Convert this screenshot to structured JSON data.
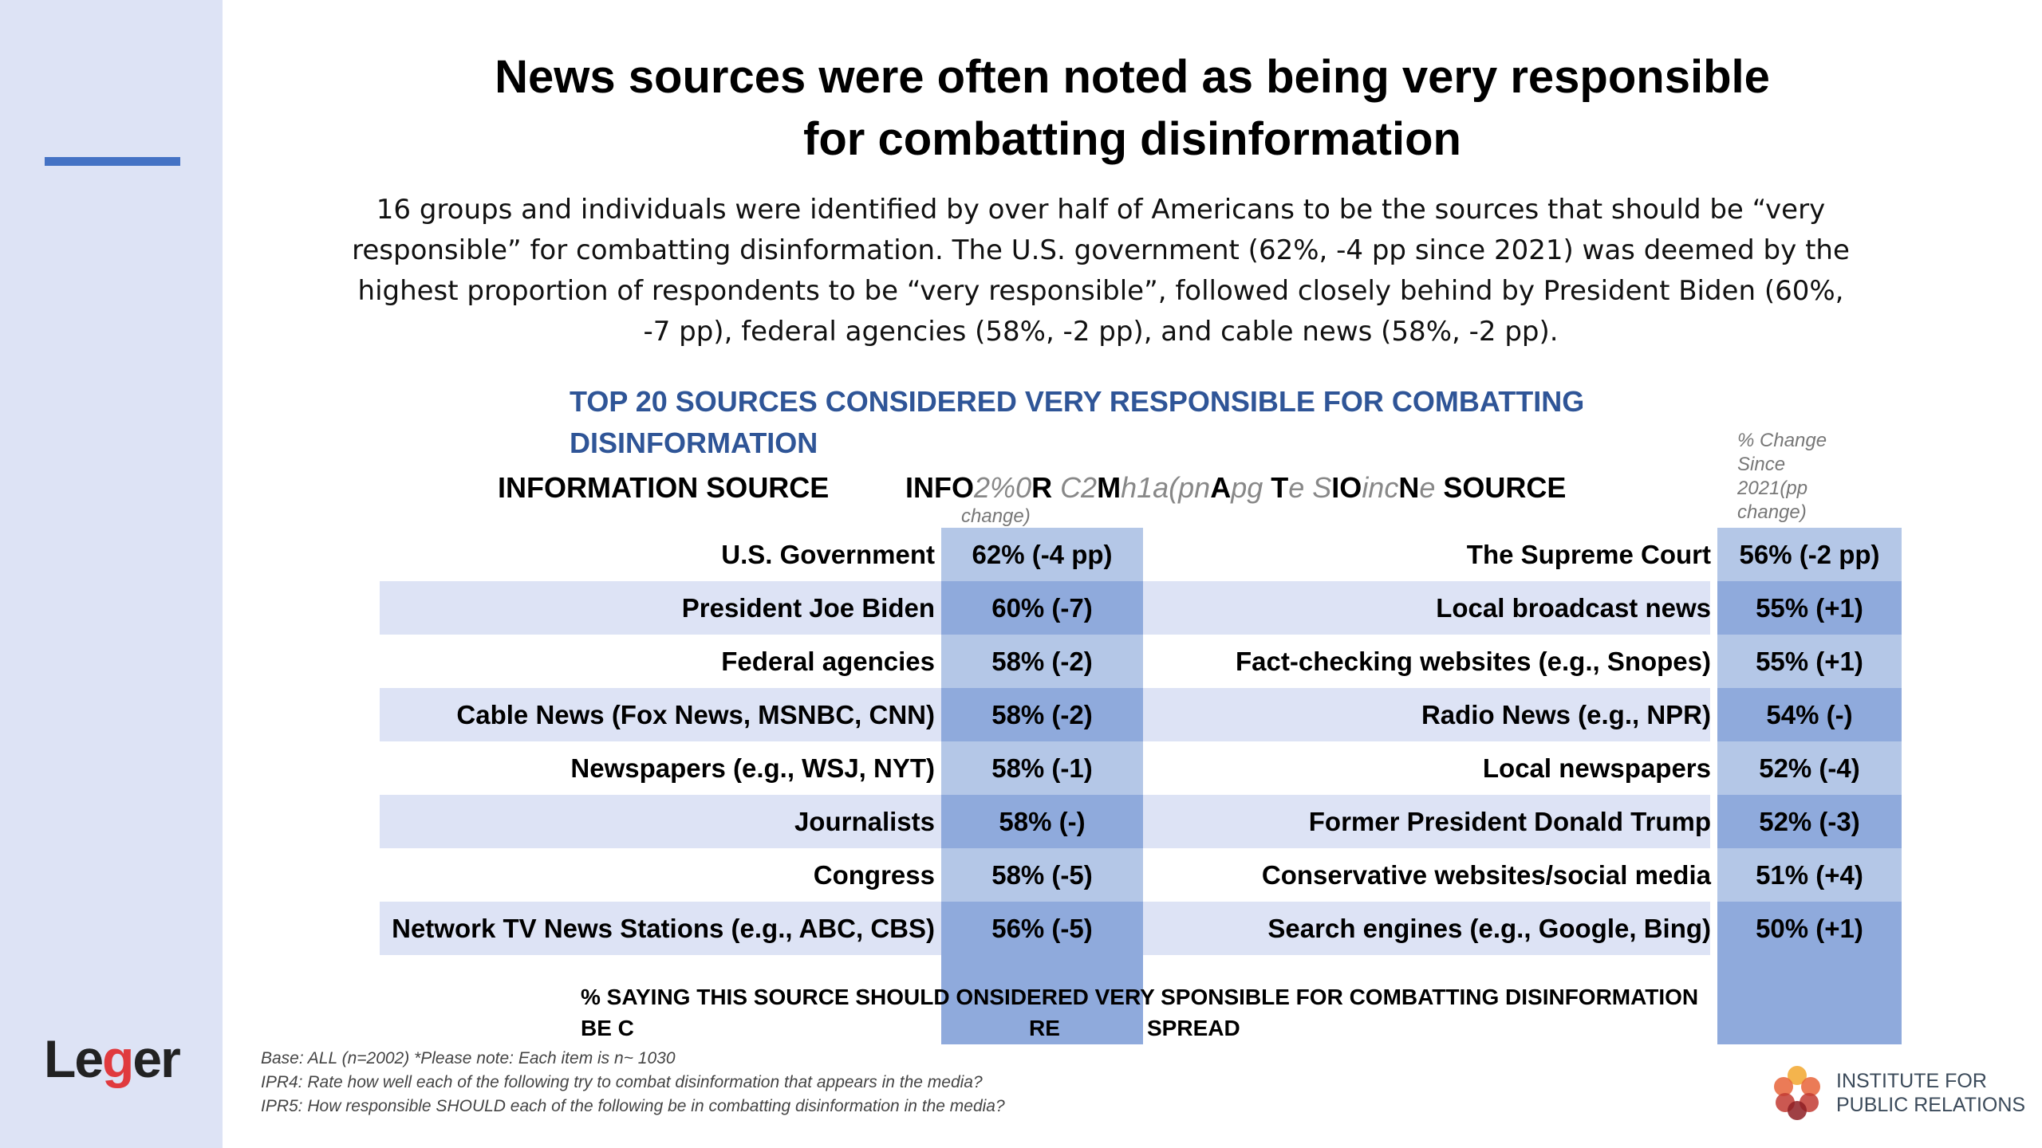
{
  "title": [
    "News sources were often noted as being very responsible",
    "for combatting disinformation"
  ],
  "paragraph": "16 groups and individuals were identified by over half of Americans to be the sources that should be “very responsible” for combatting disinformation. The U.S. government (62%, -4 pp since 2021) was deemed by the highest proportion of respondents to be “very responsible”, followed closely behind by President Biden (60%, -7 pp), federal agencies (58%, -2 pp), and cable news (58%, -2 pp).",
  "table_title": [
    "TOP 20 SOURCES CONSIDERED VERY RESPONSIBLE FOR COMBATTING",
    "DISINFORMATION"
  ],
  "left_header": "INFORMATION SOURCE",
  "right_header_segments": [
    {
      "t": "INFO",
      "g": false
    },
    {
      "t": "2%0",
      "g": true
    },
    {
      "t": "R ",
      "g": false
    },
    {
      "t": "C2",
      "g": true
    },
    {
      "t": "M",
      "g": false
    },
    {
      "t": "h1a(pn",
      "g": true
    },
    {
      "t": "A",
      "g": false
    },
    {
      "t": "pg ",
      "g": true
    },
    {
      "t": "T",
      "g": false
    },
    {
      "t": "e S",
      "g": true
    },
    {
      "t": "IO",
      "g": false
    },
    {
      "t": "inc",
      "g": true
    },
    {
      "t": "N",
      "g": false
    },
    {
      "t": "e ",
      "g": true
    },
    {
      "t": "SOURCE",
      "g": false
    }
  ],
  "left_change_overflow": "change)",
  "change_header": [
    "% Change",
    "Since",
    "2021(pp",
    "change)"
  ],
  "rows": [
    {
      "left": "U.S. Government",
      "lv": "62% (-4 pp)",
      "right": "The Supreme Court",
      "rv": "56% (-2 pp)"
    },
    {
      "left": "President Joe Biden",
      "lv": "60% (-7)",
      "right": "Local broadcast news",
      "rv": "55% (+1)"
    },
    {
      "left": "Federal agencies",
      "lv": "58% (-2)",
      "right": "Fact-checking websites (e.g., Snopes)",
      "rv": "55% (+1)"
    },
    {
      "left": "Cable News (Fox News, MSNBC, CNN)",
      "lv": "58% (-2)",
      "right": "Radio News (e.g., NPR)",
      "rv": "54% (-)"
    },
    {
      "left": "Newspapers (e.g., WSJ, NYT)",
      "lv": "58% (-1)",
      "right": "Local newspapers",
      "rv": "52% (-4)"
    },
    {
      "left": "Journalists",
      "lv": "58% (-)",
      "right": "Former President Donald Trump",
      "rv": "52% (-3)"
    },
    {
      "left": "Congress",
      "lv": "58% (-5)",
      "right": "Conservative websites/social media",
      "rv": "51% (+4)"
    },
    {
      "left": "Network TV News Stations (e.g., ABC, CBS)",
      "lv": "56% (-5)",
      "right": "Search engines (e.g., Google, Bing)",
      "rv": "50% (+1)"
    }
  ],
  "footer_line1": "% SAYING THIS SOURCE SHOULD ONSIDERED VERY SPONSIBLE FOR COMBATTING DISINFORMATION",
  "footer_line2": [
    "BE C",
    "RE",
    "SPREAD"
  ],
  "notes": [
    "Base: ALL (n=2002) *Please note: Each item is n~ 1030",
    "IPR4: Rate how well each of the following try to combat disinformation that appears in the media?",
    "IPR5: How responsible SHOULD each of the following be in combatting disinformation in the media?"
  ],
  "logo_leger": "Leger",
  "logo_ipr": [
    "INSTITUTE FOR",
    "PUBLIC RELATIONS"
  ],
  "colors": {
    "sidebar": "#dde3f5",
    "accent": "#4472c4",
    "heading": "#2f5597",
    "cell_light": "#b4c7e7",
    "cell_dark": "#8faadc",
    "band": "#dde3f5"
  }
}
